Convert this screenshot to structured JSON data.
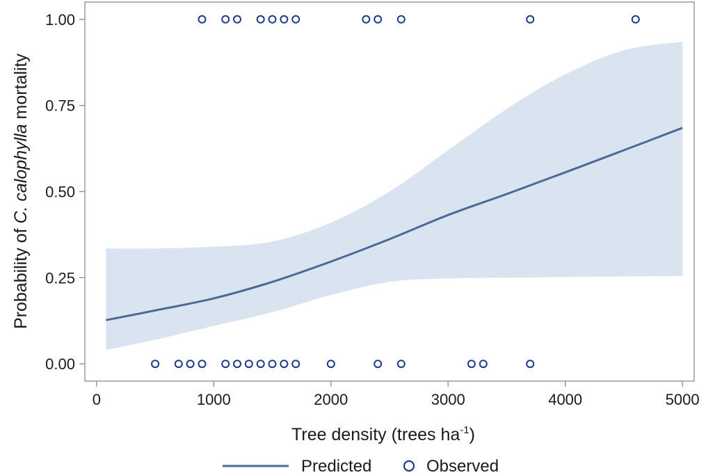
{
  "chart_data": {
    "type": "line",
    "title": "",
    "xlabel": {
      "text": "Tree density (trees ha",
      "superscript": "-1",
      "suffix": ")"
    },
    "ylabel": {
      "prefix": "Probability of ",
      "italic": "C. calophylla",
      "suffix": " mortality"
    },
    "xlim": [
      -100,
      5100
    ],
    "ylim": [
      -0.05,
      1.05
    ],
    "x_ticks": [
      0,
      1000,
      2000,
      3000,
      4000,
      5000
    ],
    "x_tick_labels": [
      "0",
      "1000",
      "2000",
      "3000",
      "4000",
      "5000"
    ],
    "y_ticks": [
      0,
      0.25,
      0.5,
      0.75,
      1.0
    ],
    "y_tick_labels": [
      "0.00",
      "0.25",
      "0.50",
      "0.75",
      "1.00"
    ],
    "grid": false,
    "legend": {
      "placement": "bottom-center",
      "items": [
        "Predicted",
        "Observed"
      ]
    },
    "colors": {
      "line": "#4a6a96",
      "band": "#dae4f1",
      "marker": "#1b3a8c",
      "axis": "#8c8c8c"
    },
    "series": [
      {
        "name": "Predicted",
        "type": "line",
        "x": [
          80,
          500,
          1000,
          1500,
          2000,
          2500,
          3000,
          3500,
          4000,
          4500,
          5000
        ],
        "y": [
          0.127,
          0.155,
          0.19,
          0.238,
          0.297,
          0.362,
          0.432,
          0.493,
          0.556,
          0.62,
          0.685
        ]
      },
      {
        "name": "Predicted",
        "type": "band",
        "x": [
          80,
          500,
          1000,
          1500,
          2000,
          2500,
          3000,
          3500,
          4000,
          4500,
          5000
        ],
        "lower": [
          0.04,
          0.07,
          0.11,
          0.15,
          0.2,
          0.238,
          0.248,
          0.25,
          0.252,
          0.254,
          0.255
        ],
        "upper": [
          0.335,
          0.335,
          0.34,
          0.355,
          0.41,
          0.5,
          0.62,
          0.74,
          0.84,
          0.91,
          0.935
        ]
      },
      {
        "name": "Observed",
        "type": "scatter",
        "points": [
          [
            900,
            1
          ],
          [
            1100,
            1
          ],
          [
            1200,
            1
          ],
          [
            1400,
            1
          ],
          [
            1500,
            1
          ],
          [
            1600,
            1
          ],
          [
            1700,
            1
          ],
          [
            2300,
            1
          ],
          [
            2400,
            1
          ],
          [
            2600,
            1
          ],
          [
            3700,
            1
          ],
          [
            4600,
            1
          ],
          [
            500,
            0
          ],
          [
            700,
            0
          ],
          [
            800,
            0
          ],
          [
            900,
            0
          ],
          [
            1100,
            0
          ],
          [
            1200,
            0
          ],
          [
            1300,
            0
          ],
          [
            1400,
            0
          ],
          [
            1500,
            0
          ],
          [
            1600,
            0
          ],
          [
            1700,
            0
          ],
          [
            2000,
            0
          ],
          [
            2400,
            0
          ],
          [
            2600,
            0
          ],
          [
            3200,
            0
          ],
          [
            3300,
            0
          ],
          [
            3700,
            0
          ]
        ]
      }
    ]
  }
}
